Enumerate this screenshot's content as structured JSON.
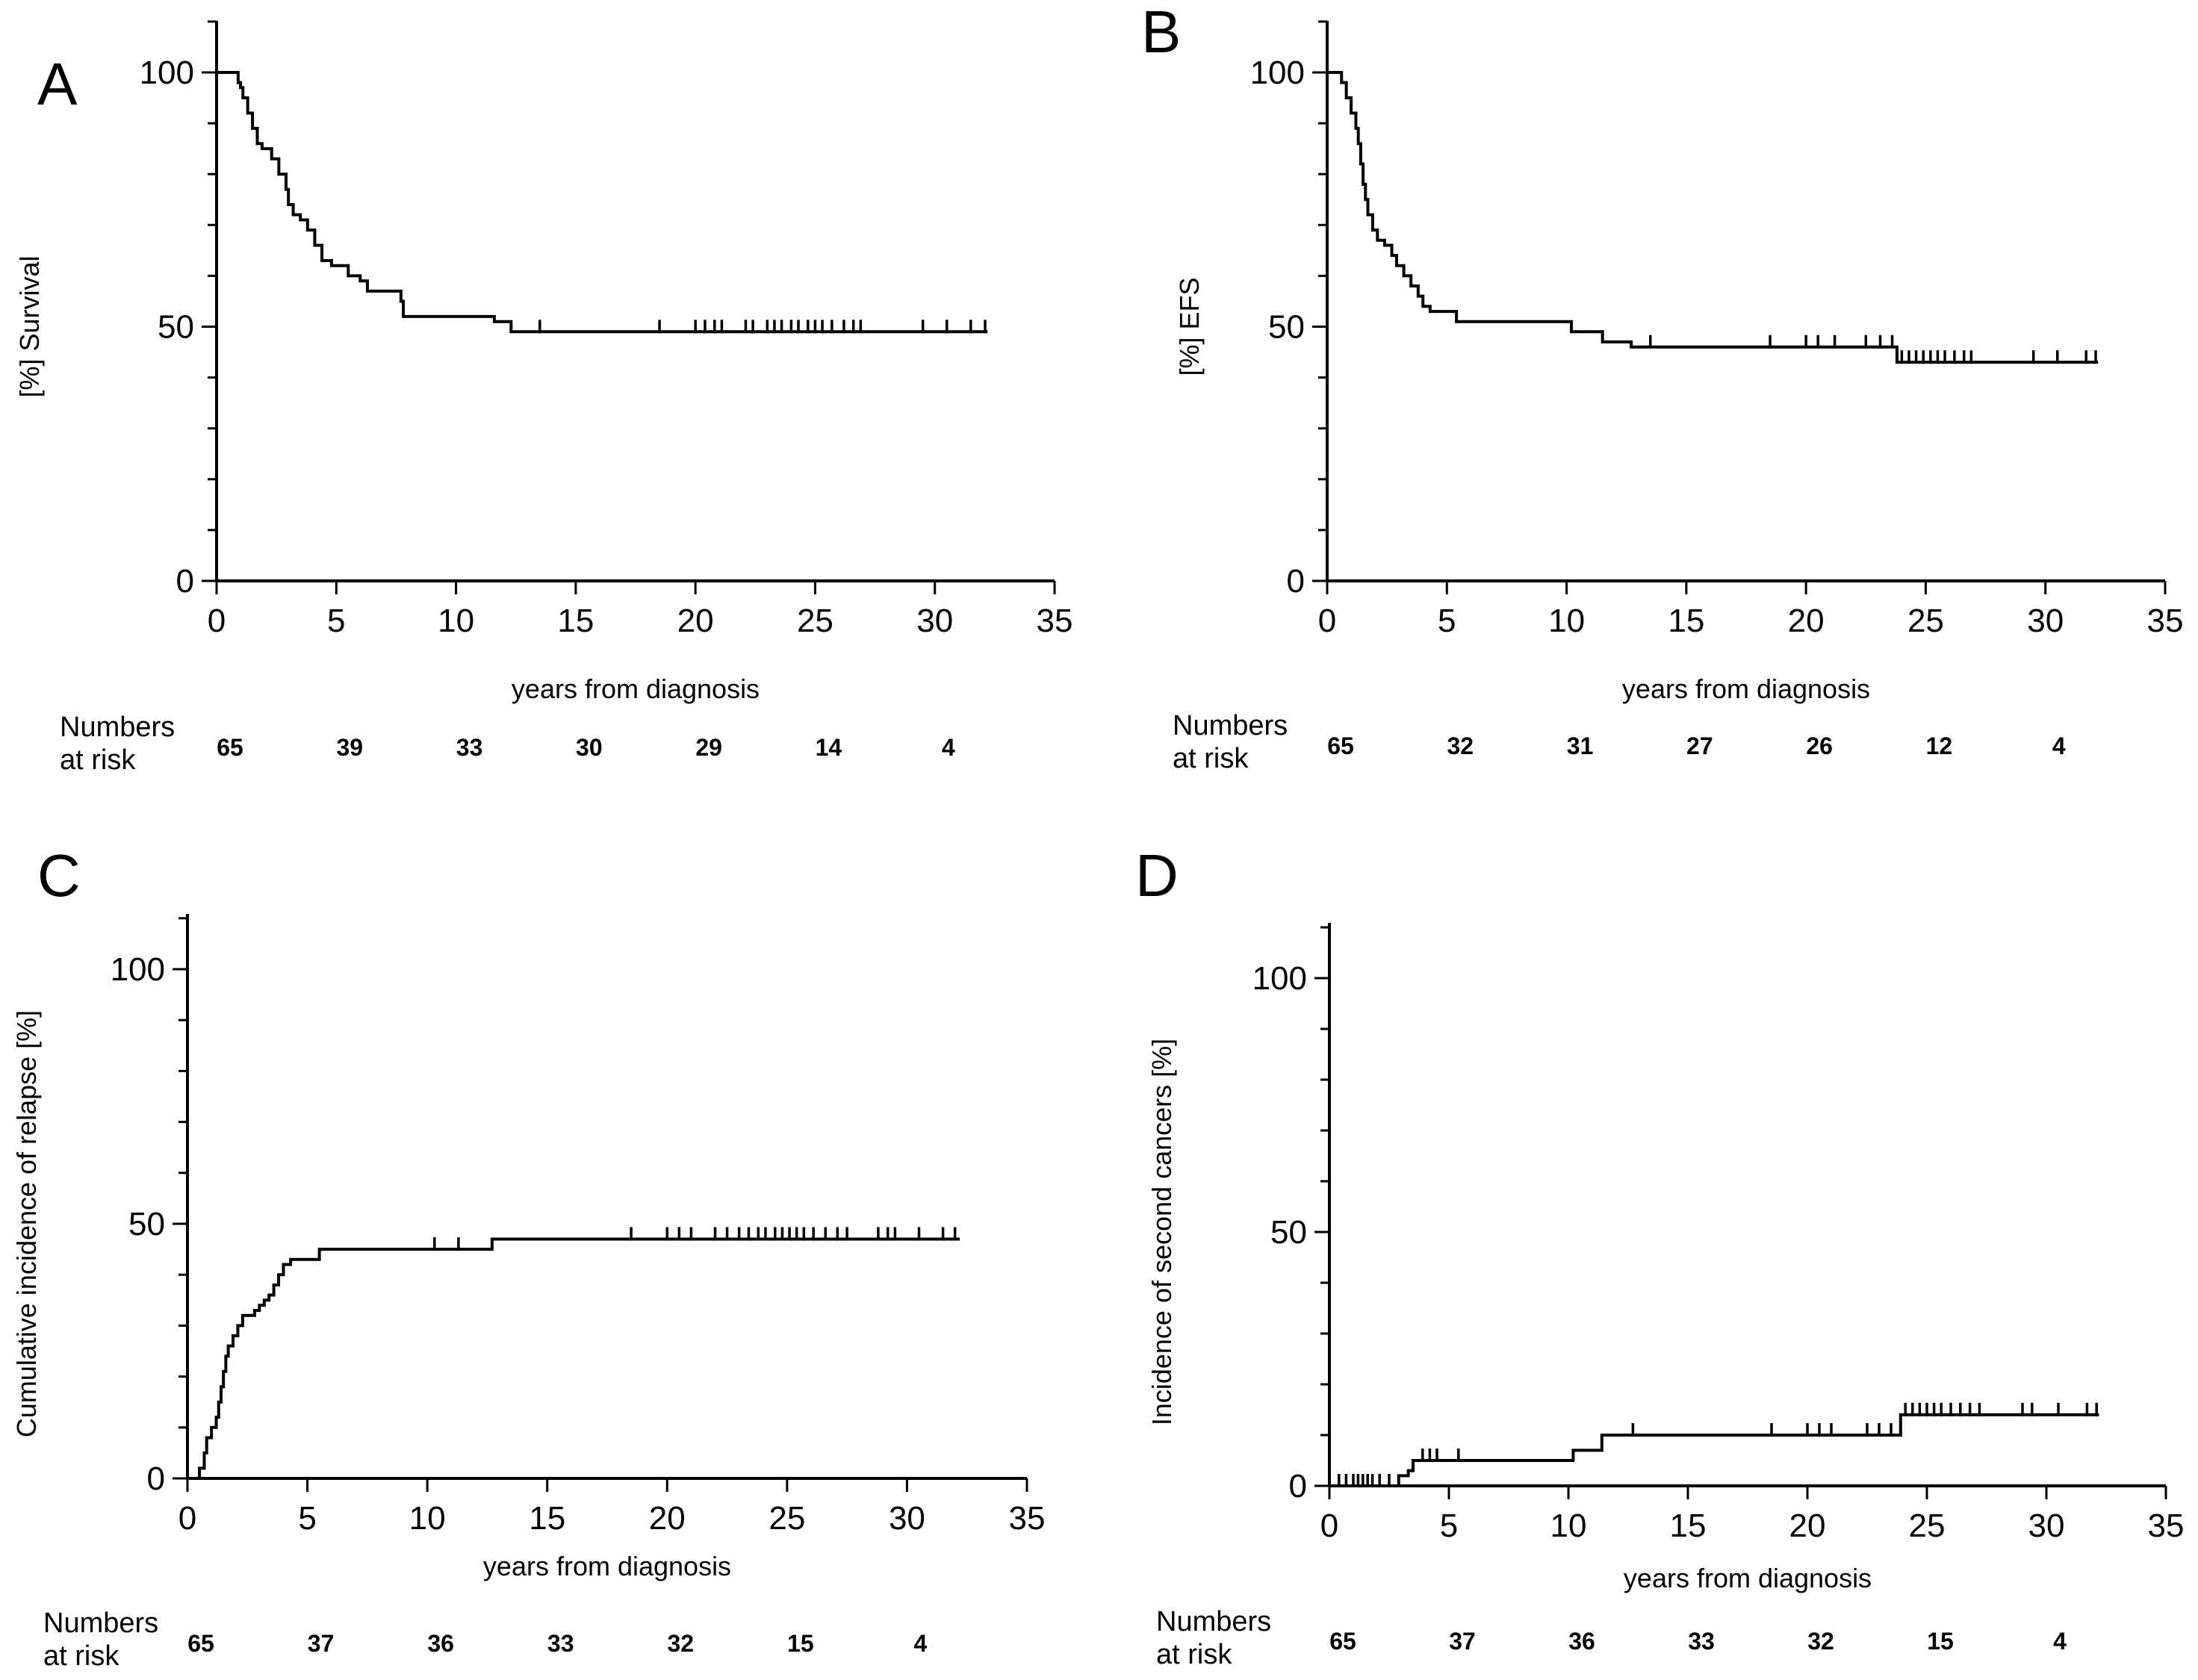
{
  "colors": {
    "line": "#000000",
    "background": "#ffffff"
  },
  "risk_header": [
    "Numbers",
    "at risk"
  ],
  "chart_data": [
    {
      "panel": "A",
      "type": "line",
      "step": true,
      "xlabel": "years from diagnosis",
      "ylabel": "[%] Survival",
      "xlim": [
        0,
        35
      ],
      "ylim": [
        0,
        100
      ],
      "xticks": [
        0,
        5,
        10,
        15,
        20,
        25,
        30,
        35
      ],
      "yticks": [
        0,
        50,
        100
      ],
      "grid": false,
      "series": [
        {
          "points": [
            [
              0,
              100
            ],
            [
              0.8,
              100
            ],
            [
              0.9,
              98
            ],
            [
              1.0,
              97
            ],
            [
              1.1,
              95
            ],
            [
              1.3,
              92
            ],
            [
              1.5,
              89
            ],
            [
              1.7,
              86
            ],
            [
              1.9,
              85
            ],
            [
              2.3,
              83
            ],
            [
              2.6,
              80
            ],
            [
              2.9,
              77
            ],
            [
              3.0,
              74
            ],
            [
              3.2,
              72
            ],
            [
              3.5,
              71
            ],
            [
              3.8,
              69
            ],
            [
              4.1,
              66
            ],
            [
              4.4,
              63
            ],
            [
              4.8,
              62
            ],
            [
              5.5,
              60
            ],
            [
              6.0,
              59
            ],
            [
              6.3,
              57
            ],
            [
              7.7,
              55
            ],
            [
              7.8,
              52
            ],
            [
              11.6,
              51
            ],
            [
              12.3,
              49
            ],
            [
              32.2,
              49
            ]
          ],
          "censor_x": [
            13.5,
            18.5,
            20.0,
            20.4,
            20.8,
            21.1,
            22.1,
            22.4,
            23.0,
            23.3,
            23.6,
            24.0,
            24.3,
            24.7,
            25.0,
            25.3,
            25.7,
            26.2,
            26.6,
            26.9,
            29.5,
            30.5,
            31.5,
            32.1
          ]
        }
      ],
      "risk_x": [
        0,
        5,
        10,
        15,
        20,
        25,
        30
      ],
      "at_risk": [
        "65",
        "39",
        "33",
        "30",
        "29",
        "14",
        "4"
      ]
    },
    {
      "panel": "B",
      "type": "line",
      "step": true,
      "xlabel": "years from diagnosis",
      "ylabel": "[%] EFS",
      "xlim": [
        0,
        35
      ],
      "ylim": [
        0,
        100
      ],
      "xticks": [
        0,
        5,
        10,
        15,
        20,
        25,
        30,
        35
      ],
      "yticks": [
        0,
        50,
        100
      ],
      "grid": false,
      "series": [
        {
          "points": [
            [
              0,
              100
            ],
            [
              0.6,
              98
            ],
            [
              0.8,
              95
            ],
            [
              1.0,
              92
            ],
            [
              1.2,
              89
            ],
            [
              1.3,
              86
            ],
            [
              1.4,
              82
            ],
            [
              1.5,
              78
            ],
            [
              1.6,
              75
            ],
            [
              1.7,
              72
            ],
            [
              1.9,
              69
            ],
            [
              2.1,
              67
            ],
            [
              2.4,
              66
            ],
            [
              2.7,
              64
            ],
            [
              2.9,
              62
            ],
            [
              3.2,
              60
            ],
            [
              3.5,
              58
            ],
            [
              3.8,
              56
            ],
            [
              4.0,
              54
            ],
            [
              4.3,
              53
            ],
            [
              5.4,
              51
            ],
            [
              10.2,
              49
            ],
            [
              11.5,
              47
            ],
            [
              12.7,
              46
            ],
            [
              23.8,
              43
            ],
            [
              32.2,
              43
            ]
          ],
          "censor_x": [
            13.5,
            18.5,
            20.0,
            20.5,
            21.2,
            22.5,
            23.1,
            23.6,
            24.0,
            24.3,
            24.6,
            24.9,
            25.2,
            25.5,
            25.8,
            26.2,
            26.6,
            26.9,
            29.5,
            30.5,
            31.7,
            32.1
          ]
        }
      ],
      "risk_x": [
        0,
        5,
        10,
        15,
        20,
        25,
        30
      ],
      "at_risk": [
        "65",
        "32",
        "31",
        "27",
        "26",
        "12",
        "4"
      ]
    },
    {
      "panel": "C",
      "type": "line",
      "step": true,
      "xlabel": "years from diagnosis",
      "ylabel": "Cumulative incidence of relapse [%]",
      "xlim": [
        0,
        35
      ],
      "ylim": [
        0,
        100
      ],
      "xticks": [
        0,
        5,
        10,
        15,
        20,
        25,
        30,
        35
      ],
      "yticks": [
        0,
        50,
        100
      ],
      "grid": false,
      "series": [
        {
          "points": [
            [
              0,
              0
            ],
            [
              0.4,
              0
            ],
            [
              0.5,
              2
            ],
            [
              0.7,
              5
            ],
            [
              0.8,
              8
            ],
            [
              1.0,
              10
            ],
            [
              1.2,
              12
            ],
            [
              1.3,
              15
            ],
            [
              1.4,
              18
            ],
            [
              1.5,
              21
            ],
            [
              1.6,
              24
            ],
            [
              1.7,
              26
            ],
            [
              1.9,
              28
            ],
            [
              2.1,
              30
            ],
            [
              2.3,
              32
            ],
            [
              2.8,
              33
            ],
            [
              3.0,
              34
            ],
            [
              3.2,
              35
            ],
            [
              3.4,
              36
            ],
            [
              3.6,
              38
            ],
            [
              3.8,
              40
            ],
            [
              4.0,
              42
            ],
            [
              4.3,
              43
            ],
            [
              5.5,
              45
            ],
            [
              12.7,
              47
            ],
            [
              32.2,
              47
            ]
          ],
          "censor_x": [
            10.3,
            11.3,
            18.5,
            20.0,
            20.5,
            21.0,
            22.0,
            22.5,
            23.0,
            23.4,
            23.8,
            24.1,
            24.5,
            24.8,
            25.1,
            25.4,
            25.7,
            26.1,
            26.6,
            27.1,
            27.5,
            28.8,
            29.2,
            29.5,
            30.5,
            31.5,
            32.0
          ]
        }
      ],
      "risk_x": [
        0,
        5,
        10,
        15,
        20,
        25,
        30
      ],
      "at_risk": [
        "65",
        "37",
        "36",
        "33",
        "32",
        "15",
        "4"
      ]
    },
    {
      "panel": "D",
      "type": "line",
      "step": true,
      "xlabel": "years from diagnosis",
      "ylabel": "Incidence of second cancers [%]",
      "xlim": [
        0,
        35
      ],
      "ylim": [
        0,
        100
      ],
      "xticks": [
        0,
        5,
        10,
        15,
        20,
        25,
        30,
        35
      ],
      "yticks": [
        0,
        50,
        100
      ],
      "grid": false,
      "series": [
        {
          "points": [
            [
              0,
              0
            ],
            [
              2.8,
              0
            ],
            [
              2.9,
              2
            ],
            [
              3.3,
              3
            ],
            [
              3.5,
              5
            ],
            [
              10.2,
              7
            ],
            [
              11.4,
              10
            ],
            [
              23.9,
              14
            ],
            [
              32.2,
              14
            ]
          ],
          "censor_x": [
            0.4,
            0.7,
            1.0,
            1.2,
            1.4,
            1.6,
            1.8,
            2.1,
            2.5,
            3.9,
            4.2,
            4.5,
            5.4,
            12.7,
            18.5,
            20.0,
            20.5,
            21.0,
            22.5,
            23.0,
            23.5,
            24.1,
            24.4,
            24.7,
            25.0,
            25.3,
            25.6,
            26.0,
            26.4,
            26.8,
            27.2,
            29.0,
            29.4,
            30.5,
            31.7,
            32.1
          ]
        }
      ],
      "risk_x": [
        0,
        5,
        10,
        15,
        20,
        25,
        30
      ],
      "at_risk": [
        "65",
        "37",
        "36",
        "33",
        "32",
        "15",
        "4"
      ]
    }
  ]
}
